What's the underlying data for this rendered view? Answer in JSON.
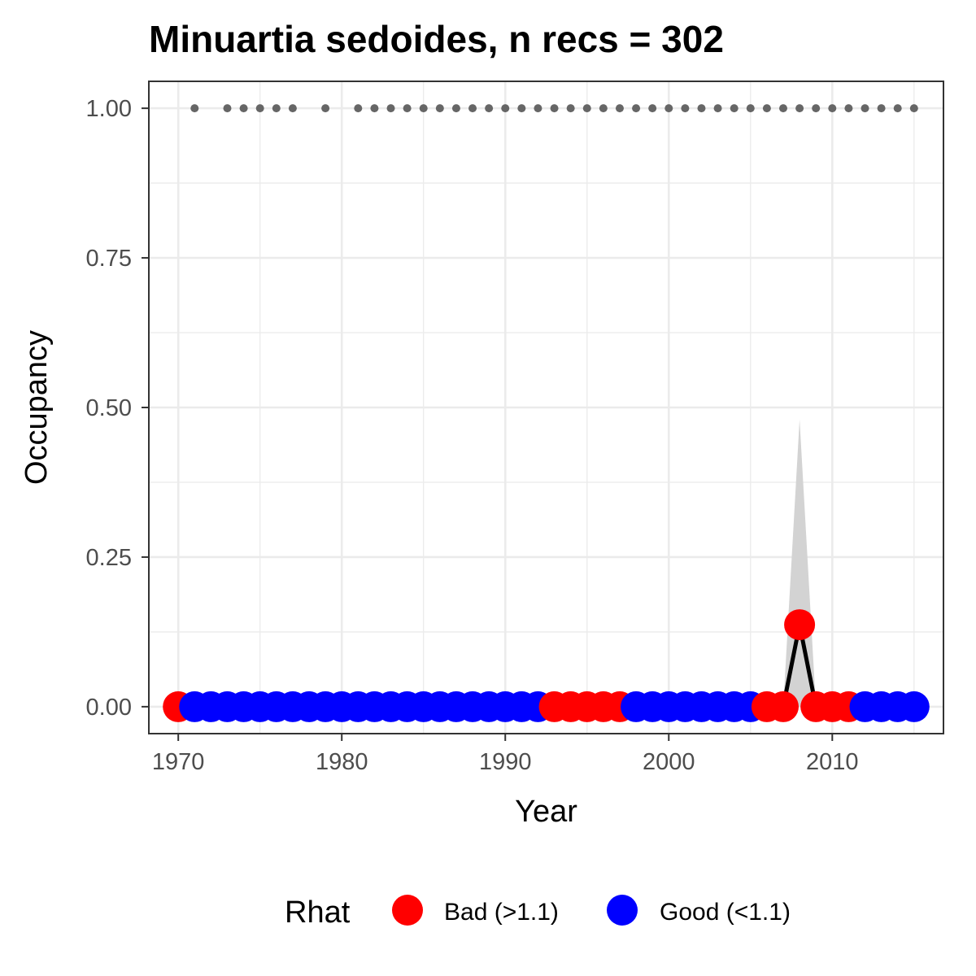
{
  "chart_data": {
    "type": "line",
    "title": "Minuartia sedoides, n recs = 302",
    "xlabel": "Year",
    "ylabel": "Occupancy",
    "xlim": [
      1968.2,
      2016.8
    ],
    "ylim": [
      -0.045,
      1.045
    ],
    "x_ticks": [
      1970,
      1980,
      1990,
      2000,
      2010
    ],
    "x_tick_labels": [
      "1970",
      "1980",
      "1990",
      "2000",
      "2010"
    ],
    "y_ticks": [
      0,
      0.25,
      0.5,
      0.75,
      1
    ],
    "y_tick_labels": [
      "0.00",
      "0.25",
      "0.50",
      "0.75",
      "1.00"
    ],
    "grid": true,
    "legend": {
      "title": "Rhat",
      "position": "bottom",
      "entries": [
        {
          "label": "Bad (>1.1)",
          "color": "#ff0000"
        },
        {
          "label": "Good (<1.1)",
          "color": "#0000ff"
        }
      ]
    },
    "series": [
      {
        "role": "occupancy-mean",
        "line_color": "#000000",
        "x": [
          1970,
          1971,
          1972,
          1973,
          1974,
          1975,
          1976,
          1977,
          1978,
          1979,
          1980,
          1981,
          1982,
          1983,
          1984,
          1985,
          1986,
          1987,
          1988,
          1989,
          1990,
          1991,
          1992,
          1993,
          1994,
          1995,
          1996,
          1997,
          1998,
          1999,
          2000,
          2001,
          2002,
          2003,
          2004,
          2005,
          2006,
          2007,
          2008,
          2009,
          2010,
          2011,
          2012,
          2013,
          2014,
          2015
        ],
        "y": [
          0,
          0,
          0,
          0,
          0,
          0,
          0,
          0,
          0,
          0,
          0,
          0,
          0,
          0,
          0,
          0,
          0,
          0,
          0,
          0,
          0,
          0,
          0,
          0,
          0,
          0,
          0,
          0,
          0,
          0,
          0,
          0,
          0,
          0,
          0,
          0,
          0,
          0,
          0.137,
          0,
          0,
          0,
          0,
          0,
          0,
          0
        ],
        "rhat": [
          "Bad",
          "Good",
          "Good",
          "Good",
          "Good",
          "Good",
          "Good",
          "Good",
          "Good",
          "Good",
          "Good",
          "Good",
          "Good",
          "Good",
          "Good",
          "Good",
          "Good",
          "Good",
          "Good",
          "Good",
          "Good",
          "Good",
          "Good",
          "Bad",
          "Bad",
          "Bad",
          "Bad",
          "Bad",
          "Good",
          "Good",
          "Good",
          "Good",
          "Good",
          "Good",
          "Good",
          "Good",
          "Bad",
          "Bad",
          "Bad",
          "Bad",
          "Bad",
          "Bad",
          "Good",
          "Good",
          "Good",
          "Good"
        ]
      }
    ],
    "credible_interval": {
      "color": "#d3d3d3",
      "x": [
        2007,
        2008,
        2009
      ],
      "lower": [
        0,
        0,
        0
      ],
      "upper": [
        0,
        0.48,
        0
      ]
    },
    "records": {
      "color": "#666666",
      "y": 1,
      "x": [
        1971,
        1973,
        1974,
        1975,
        1976,
        1977,
        1979,
        1981,
        1982,
        1983,
        1984,
        1985,
        1986,
        1987,
        1988,
        1989,
        1990,
        1991,
        1992,
        1993,
        1994,
        1995,
        1996,
        1997,
        1998,
        1999,
        2000,
        2001,
        2002,
        2003,
        2004,
        2005,
        2006,
        2007,
        2008,
        2009,
        2010,
        2011,
        2012,
        2013,
        2014,
        2015
      ]
    }
  }
}
